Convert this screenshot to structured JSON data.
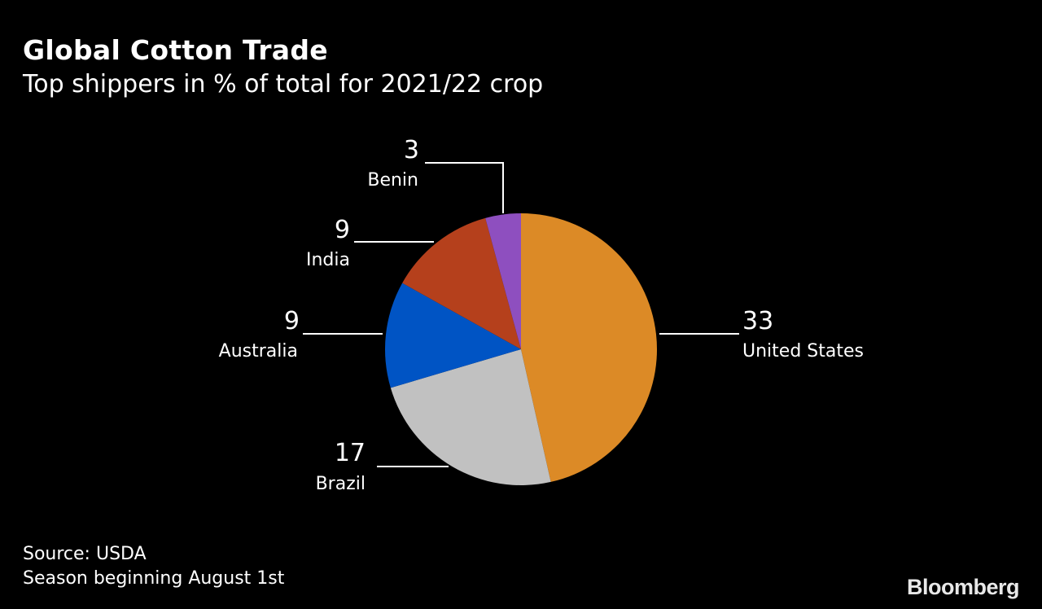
{
  "chart_data": {
    "type": "pie",
    "title": "Global Cotton Trade",
    "subtitle": "Top shippers in % of total for 2021/22 crop",
    "start": "top",
    "direction": "clockwise",
    "slices": [
      {
        "label": "United States",
        "value": 33,
        "display": "33",
        "color": "#dc8a26"
      },
      {
        "label": "Brazil",
        "value": 17,
        "display": "17",
        "color": "#c1c1c1"
      },
      {
        "label": "Australia",
        "value": 9,
        "display": "9",
        "color": "#0054c4"
      },
      {
        "label": "India",
        "value": 9,
        "display": "9",
        "color": "#b5401c"
      },
      {
        "label": "Benin",
        "value": 3,
        "display": "3",
        "color": "#8e4fbf"
      }
    ]
  },
  "footer": {
    "source": "Source: USDA",
    "note": "Season beginning August 1st",
    "logo": "Bloomberg"
  }
}
